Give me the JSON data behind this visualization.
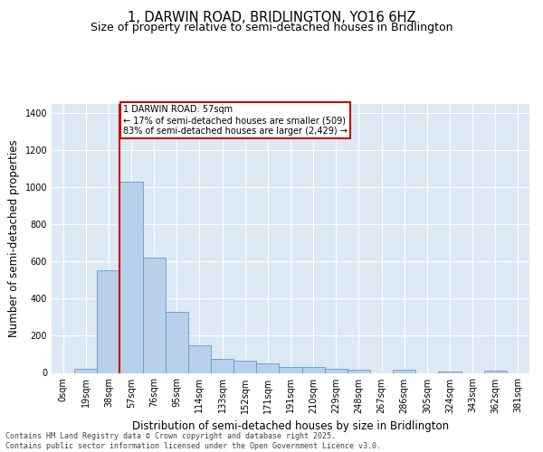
{
  "title_line1": "1, DARWIN ROAD, BRIDLINGTON, YO16 6HZ",
  "title_line2": "Size of property relative to semi-detached houses in Bridlington",
  "xlabel": "Distribution of semi-detached houses by size in Bridlington",
  "ylabel": "Number of semi-detached properties",
  "bar_labels": [
    "0sqm",
    "19sqm",
    "38sqm",
    "57sqm",
    "76sqm",
    "95sqm",
    "114sqm",
    "133sqm",
    "152sqm",
    "171sqm",
    "191sqm",
    "210sqm",
    "229sqm",
    "248sqm",
    "267sqm",
    "286sqm",
    "305sqm",
    "324sqm",
    "343sqm",
    "362sqm",
    "381sqm"
  ],
  "bar_values": [
    0,
    20,
    555,
    1030,
    620,
    330,
    150,
    75,
    65,
    50,
    30,
    30,
    20,
    15,
    0,
    15,
    0,
    8,
    0,
    10,
    0
  ],
  "bar_color": "#b8d0ea",
  "bar_edge_color": "#6699cc",
  "background_color": "#dde8f5",
  "vline_x_idx": 3,
  "vline_color": "#cc0000",
  "annotation_text": "1 DARWIN ROAD: 57sqm\n← 17% of semi-detached houses are smaller (509)\n83% of semi-detached houses are larger (2,429) →",
  "annotation_box_color": "#cc0000",
  "ylim": [
    0,
    1450
  ],
  "yticks": [
    0,
    200,
    400,
    600,
    800,
    1000,
    1200,
    1400
  ],
  "footer_text": "Contains HM Land Registry data © Crown copyright and database right 2025.\nContains public sector information licensed under the Open Government Licence v3.0.",
  "title_fontsize": 10.5,
  "subtitle_fontsize": 9,
  "axis_label_fontsize": 8.5,
  "tick_fontsize": 7,
  "footer_fontsize": 6,
  "annot_fontsize": 7
}
